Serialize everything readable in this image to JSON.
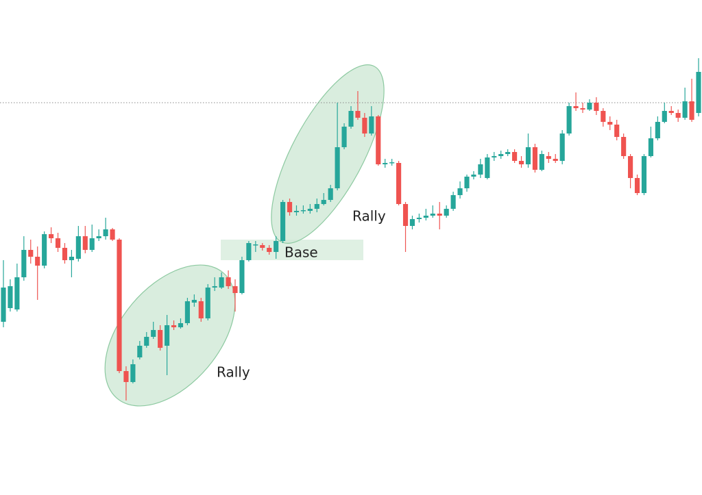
{
  "chart_data": {
    "type": "candlestick",
    "ylim": [
      0,
      723
    ],
    "up_color": "#26a69a",
    "down_color": "#ef5350",
    "reference_line": 573,
    "annotations": [
      "Rally",
      "Base",
      "Rally"
    ],
    "open": [
      253,
      273,
      271,
      318,
      358,
      348,
      335,
      381,
      375,
      361,
      343,
      345,
      378,
      358,
      375,
      378,
      388,
      373,
      181,
      165,
      201,
      218,
      231,
      241,
      218,
      248,
      245,
      251,
      281,
      283,
      258,
      303,
      303,
      318,
      305,
      295,
      343,
      365,
      365,
      361,
      355,
      371,
      428,
      413,
      415,
      415,
      418,
      425,
      431,
      448,
      508,
      538,
      561,
      551,
      528,
      553,
      483,
      485,
      485,
      425,
      393,
      403,
      405,
      408,
      411,
      408,
      418,
      438,
      448,
      465,
      468,
      463,
      493,
      495,
      498,
      501,
      488,
      483,
      508,
      475,
      495,
      491,
      488,
      528,
      568,
      565,
      563,
      573,
      561,
      545,
      541,
      523,
      495,
      463,
      441,
      495,
      521,
      545,
      561,
      558,
      551,
      575,
      558
    ],
    "high": [
      343,
      315,
      338,
      378,
      373,
      363,
      385,
      391,
      383,
      368,
      358,
      393,
      393,
      395,
      388,
      405,
      390,
      375,
      188,
      198,
      225,
      238,
      253,
      248,
      263,
      255,
      258,
      288,
      293,
      288,
      308,
      318,
      325,
      328,
      315,
      348,
      371,
      371,
      368,
      365,
      378,
      431,
      433,
      423,
      423,
      425,
      433,
      441,
      453,
      573,
      543,
      568,
      590,
      558,
      568,
      555,
      491,
      491,
      488,
      428,
      408,
      411,
      418,
      423,
      428,
      423,
      443,
      458,
      468,
      473,
      491,
      498,
      501,
      503,
      505,
      505,
      495,
      528,
      513,
      503,
      501,
      498,
      533,
      573,
      588,
      573,
      578,
      581,
      565,
      553,
      548,
      528,
      498,
      468,
      498,
      538,
      553,
      573,
      568,
      563,
      595,
      608,
      638
    ],
    "low": [
      245,
      268,
      268,
      313,
      338,
      285,
      331,
      368,
      355,
      338,
      318,
      341,
      353,
      355,
      371,
      373,
      371,
      178,
      138,
      163,
      198,
      215,
      228,
      211,
      175,
      241,
      243,
      248,
      275,
      253,
      255,
      298,
      301,
      301,
      268,
      293,
      341,
      355,
      357,
      351,
      345,
      368,
      408,
      408,
      411,
      411,
      413,
      423,
      428,
      445,
      505,
      535,
      548,
      523,
      525,
      481,
      478,
      481,
      423,
      355,
      388,
      398,
      401,
      405,
      388,
      405,
      415,
      433,
      443,
      461,
      463,
      461,
      488,
      491,
      495,
      485,
      478,
      478,
      471,
      473,
      485,
      485,
      483,
      525,
      561,
      558,
      561,
      555,
      538,
      533,
      518,
      491,
      448,
      438,
      438,
      493,
      518,
      543,
      555,
      545,
      548,
      545,
      553
    ],
    "close": [
      303,
      305,
      318,
      358,
      348,
      335,
      381,
      375,
      361,
      343,
      348,
      378,
      358,
      375,
      378,
      388,
      373,
      181,
      165,
      191,
      218,
      231,
      241,
      215,
      248,
      245,
      251,
      283,
      285,
      258,
      303,
      305,
      318,
      305,
      295,
      343,
      368,
      366,
      361,
      355,
      371,
      428,
      413,
      415,
      416,
      418,
      425,
      431,
      448,
      508,
      538,
      561,
      551,
      528,
      553,
      483,
      485,
      486,
      425,
      393,
      403,
      405,
      408,
      411,
      408,
      418,
      438,
      448,
      465,
      468,
      483,
      493,
      495,
      498,
      501,
      488,
      483,
      508,
      475,
      498,
      491,
      488,
      528,
      568,
      565,
      563,
      573,
      561,
      545,
      541,
      523,
      495,
      463,
      441,
      495,
      521,
      545,
      561,
      558,
      551,
      575,
      548,
      618
    ]
  }
}
